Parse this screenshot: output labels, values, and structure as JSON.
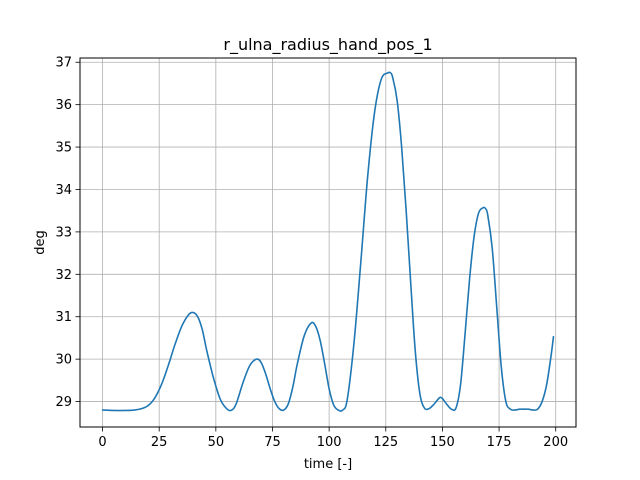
{
  "chart_data": {
    "type": "line",
    "title": "r_ulna_radius_hand_pos_1",
    "xlabel": "time [-]",
    "ylabel": "deg",
    "xlim": [
      -9.95,
      208.95
    ],
    "ylim": [
      28.4,
      37.1
    ],
    "x_ticks": [
      0,
      25,
      50,
      75,
      100,
      125,
      150,
      175,
      200
    ],
    "y_ticks": [
      29,
      30,
      31,
      32,
      33,
      34,
      35,
      36,
      37
    ],
    "grid": true,
    "color": "#1f77b4",
    "series": [
      {
        "name": "",
        "x": [
          0,
          5,
          10,
          14,
          17,
          20,
          23,
          26,
          29,
          32,
          35,
          38,
          40,
          42,
          44,
          46,
          49,
          52,
          55,
          57,
          59,
          62,
          65,
          68,
          70,
          72,
          74,
          76,
          78,
          80,
          82,
          84,
          86,
          89,
          92,
          94,
          96,
          98,
          100,
          102,
          104,
          106,
          108,
          111,
          114,
          117,
          120,
          123,
          126,
          127,
          128,
          130,
          132,
          134,
          136,
          138,
          140,
          142,
          144,
          146,
          148,
          149,
          150,
          152,
          154,
          156,
          158,
          160,
          162,
          164,
          166,
          168,
          169,
          170,
          172,
          174,
          176,
          178,
          180,
          182,
          184,
          186,
          188,
          190,
          192,
          194,
          196,
          198,
          199
        ],
        "y": [
          28.8,
          28.79,
          28.79,
          28.8,
          28.83,
          28.9,
          29.08,
          29.4,
          29.85,
          30.35,
          30.78,
          31.05,
          31.1,
          31.0,
          30.7,
          30.2,
          29.55,
          29.05,
          28.82,
          28.8,
          28.95,
          29.45,
          29.85,
          30.0,
          29.92,
          29.65,
          29.3,
          29.0,
          28.83,
          28.8,
          28.95,
          29.35,
          29.9,
          30.55,
          30.85,
          30.78,
          30.45,
          29.9,
          29.3,
          28.92,
          28.8,
          28.8,
          29.05,
          30.4,
          32.3,
          34.3,
          35.8,
          36.6,
          36.75,
          36.75,
          36.65,
          36.1,
          35.0,
          33.5,
          31.8,
          30.2,
          29.2,
          28.85,
          28.83,
          28.92,
          29.05,
          29.1,
          29.07,
          28.93,
          28.82,
          28.85,
          29.4,
          30.6,
          31.9,
          32.9,
          33.45,
          33.57,
          33.55,
          33.4,
          32.6,
          31.2,
          29.8,
          29.0,
          28.82,
          28.8,
          28.82,
          28.82,
          28.82,
          28.8,
          28.82,
          29.0,
          29.4,
          30.1,
          30.53
        ]
      }
    ]
  }
}
